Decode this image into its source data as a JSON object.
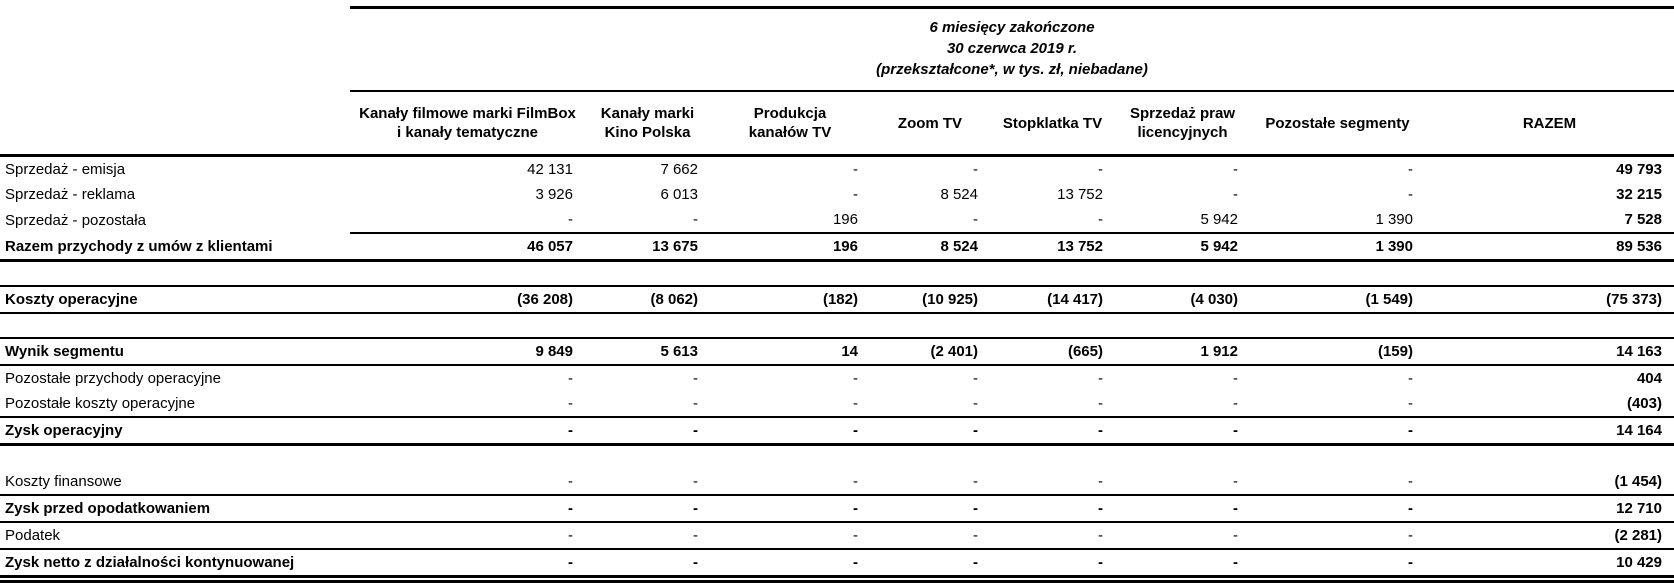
{
  "period_header": {
    "line1": "6 miesięcy zakończone",
    "line2": "30 czerwca 2019 r.",
    "line3": "(przekształcone*, w tys. zł, niebadane)"
  },
  "columns": [
    {
      "l1": "Kanały filmowe marki FilmBox",
      "l2": "i kanały tematyczne"
    },
    {
      "l1": "Kanały marki",
      "l2": "Kino Polska"
    },
    {
      "l1": "Produkcja",
      "l2": "kanałów TV"
    },
    {
      "l1": "Zoom TV",
      "l2": ""
    },
    {
      "l1": "Stopklatka TV",
      "l2": ""
    },
    {
      "l1": "Sprzedaż praw",
      "l2": "licencyjnych"
    },
    {
      "l1": "Pozostałe segmenty",
      "l2": ""
    },
    {
      "l1": "RAZEM",
      "l2": ""
    }
  ],
  "rows": [
    {
      "label": "Sprzedaż - emisja",
      "values": [
        "42 131",
        "7 662",
        "-",
        "-",
        "-",
        "-",
        "-",
        "49 793"
      ]
    },
    {
      "label": "Sprzedaż - reklama",
      "values": [
        "3 926",
        "6 013",
        "-",
        "8 524",
        "13 752",
        "-",
        "-",
        "32 215"
      ]
    },
    {
      "label": "Sprzedaż - pozostała",
      "values": [
        "-",
        "-",
        "196",
        "-",
        "-",
        "5 942",
        "1 390",
        "7 528"
      ]
    },
    {
      "label": "Razem przychody z umów z klientami",
      "values": [
        "46 057",
        "13 675",
        "196",
        "8 524",
        "13 752",
        "5 942",
        "1 390",
        "89 536"
      ]
    },
    {
      "label": "Koszty operacyjne",
      "values": [
        "(36 208)",
        "(8 062)",
        "(182)",
        "(10 925)",
        "(14 417)",
        "(4 030)",
        "(1 549)",
        "(75 373)"
      ]
    },
    {
      "label": "Wynik segmentu",
      "values": [
        "9 849",
        "5 613",
        "14",
        "(2 401)",
        "(665)",
        "1 912",
        "(159)",
        "14 163"
      ]
    },
    {
      "label": "Pozostałe przychody operacyjne",
      "values": [
        "-",
        "-",
        "-",
        "-",
        "-",
        "-",
        "-",
        "404"
      ]
    },
    {
      "label": "Pozostałe koszty operacyjne",
      "values": [
        "-",
        "-",
        "-",
        "-",
        "-",
        "-",
        "-",
        "(403)"
      ]
    },
    {
      "label": "Zysk operacyjny",
      "values": [
        "-",
        "-",
        "-",
        "-",
        "-",
        "-",
        "-",
        "14 164"
      ]
    },
    {
      "label": "Koszty finansowe",
      "values": [
        "-",
        "-",
        "-",
        "-",
        "-",
        "-",
        "-",
        "(1 454)"
      ]
    },
    {
      "label": "Zysk przed opodatkowaniem",
      "values": [
        "-",
        "-",
        "-",
        "-",
        "-",
        "-",
        "-",
        "12 710"
      ]
    },
    {
      "label": "Podatek",
      "values": [
        "-",
        "-",
        "-",
        "-",
        "-",
        "-",
        "-",
        "(2 281)"
      ]
    },
    {
      "label": "Zysk netto z działalności kontynuowanej",
      "values": [
        "-",
        "-",
        "-",
        "-",
        "-",
        "-",
        "-",
        "10 429"
      ]
    }
  ],
  "colors": {
    "text": "#000000",
    "background": "#ffffff",
    "rule": "#000000"
  }
}
